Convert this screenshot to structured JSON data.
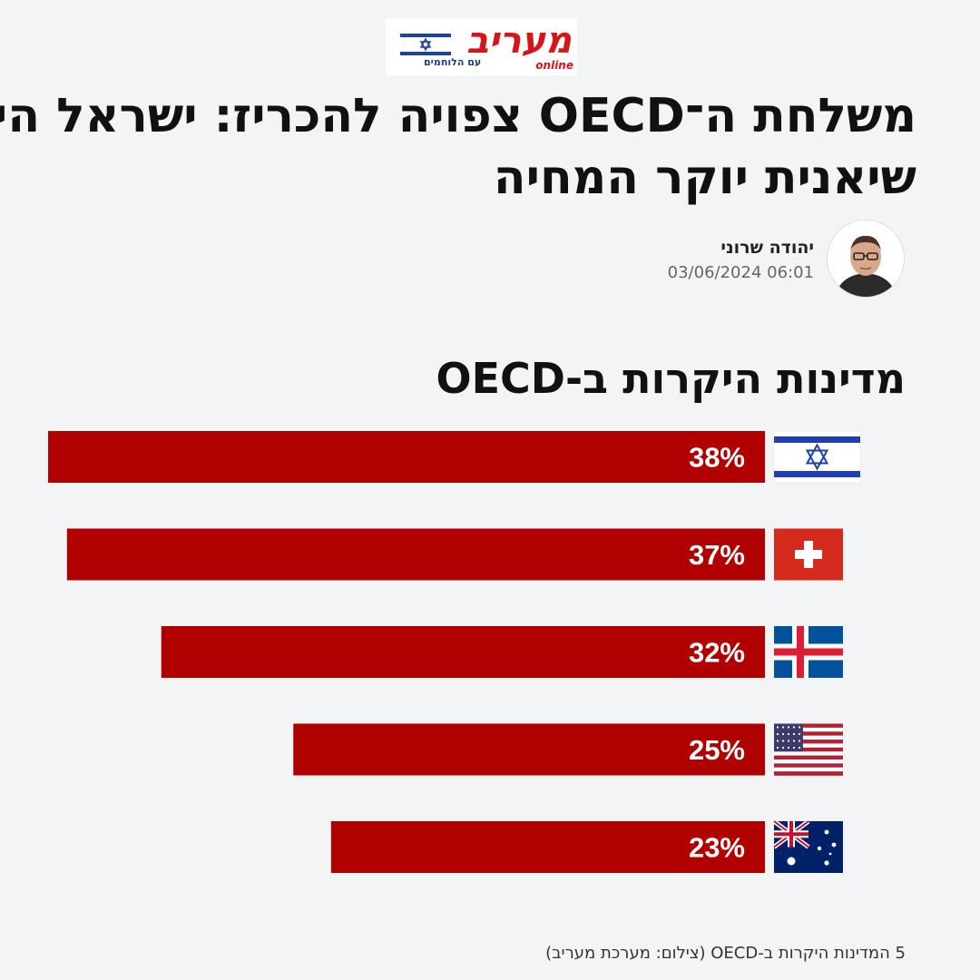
{
  "brand": {
    "logo_text": "מעריב",
    "logo_tagline": "עם הלוחמים",
    "logo_online": "online"
  },
  "article": {
    "headline_line1": "משלחת ה־OECD צפויה להכריז: ישראל היא",
    "headline_line2": "שיאנית יוקר המחיה",
    "author": "יהודה שרוני",
    "published": "03/06/2024 06:01"
  },
  "image_caption": "5 המדינות היקרות ב-OECD (צילום: מערכת מעריב)",
  "colors": {
    "bar": "#b00000",
    "background": "#f3f4f6"
  },
  "chart_data": {
    "type": "bar",
    "orientation": "horizontal",
    "title": "מדינות היקרות ב-OECD",
    "unit": "%",
    "categories": [
      "israel-flag",
      "switzerland-flag",
      "iceland-flag",
      "usa-flag",
      "australia-flag"
    ],
    "values": [
      38,
      37,
      32,
      25,
      23
    ],
    "data_labels": [
      "38%",
      "37%",
      "32%",
      "25%",
      "23%"
    ],
    "xlim": [
      0,
      38
    ],
    "grid": false,
    "legend": "none"
  }
}
